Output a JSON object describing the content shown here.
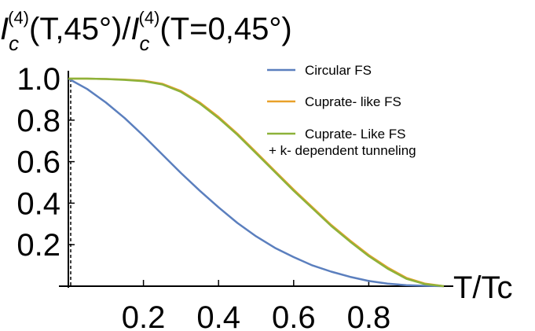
{
  "chart_data": {
    "type": "line",
    "ylabel": {
      "base1": "I",
      "sub1": "c",
      "sup1": "(4)",
      "args1": "(T,45°)/",
      "base2": "I",
      "sub2": "c",
      "sup2": "(4)",
      "args2": "(T=0,45°)"
    },
    "xlabel": "T/Tc",
    "xlim": [
      0,
      1
    ],
    "ylim": [
      0,
      1
    ],
    "x_ticks": [
      "0.2",
      "0.4",
      "0.6",
      "0.8"
    ],
    "x_tick_values": [
      0.2,
      0.4,
      0.6,
      0.8
    ],
    "y_ticks": [
      "1.0",
      "0.8",
      "0.6",
      "0.4",
      "0.2"
    ],
    "y_tick_values": [
      1.0,
      0.8,
      0.6,
      0.4,
      0.2
    ],
    "legend_placement": "top-right",
    "series": [
      {
        "name": "Circular FS",
        "color": "#5b7fbe",
        "x": [
          0.0,
          0.05,
          0.1,
          0.15,
          0.2,
          0.25,
          0.3,
          0.35,
          0.4,
          0.45,
          0.5,
          0.55,
          0.6,
          0.65,
          0.7,
          0.75,
          0.8,
          0.85,
          0.9,
          0.95,
          1.0
        ],
        "y": [
          1.0,
          0.95,
          0.885,
          0.81,
          0.725,
          0.635,
          0.545,
          0.46,
          0.38,
          0.305,
          0.24,
          0.185,
          0.14,
          0.1,
          0.07,
          0.045,
          0.025,
          0.012,
          0.005,
          0.002,
          0.0
        ]
      },
      {
        "name": "Cuprate- like FS",
        "color": "#e9a12a",
        "x": [
          0.0,
          0.05,
          0.1,
          0.15,
          0.2,
          0.25,
          0.3,
          0.35,
          0.4,
          0.45,
          0.5,
          0.55,
          0.6,
          0.65,
          0.7,
          0.75,
          0.8,
          0.85,
          0.9,
          0.95,
          1.0
        ],
        "y": [
          1.0,
          1.0,
          0.998,
          0.995,
          0.99,
          0.975,
          0.94,
          0.885,
          0.815,
          0.735,
          0.645,
          0.555,
          0.465,
          0.38,
          0.295,
          0.22,
          0.15,
          0.09,
          0.04,
          0.012,
          0.0
        ]
      },
      {
        "name": "Cuprate- Like FS",
        "name2": "+ k- dependent tunneling",
        "color": "#8db23a",
        "x": [
          0.0,
          0.05,
          0.1,
          0.15,
          0.2,
          0.25,
          0.3,
          0.35,
          0.4,
          0.45,
          0.5,
          0.55,
          0.6,
          0.65,
          0.7,
          0.75,
          0.8,
          0.85,
          0.9,
          0.95,
          1.0
        ],
        "y": [
          1.0,
          1.0,
          0.998,
          0.994,
          0.988,
          0.972,
          0.936,
          0.88,
          0.81,
          0.73,
          0.64,
          0.55,
          0.46,
          0.375,
          0.29,
          0.215,
          0.145,
          0.085,
          0.036,
          0.01,
          0.0
        ]
      }
    ]
  }
}
